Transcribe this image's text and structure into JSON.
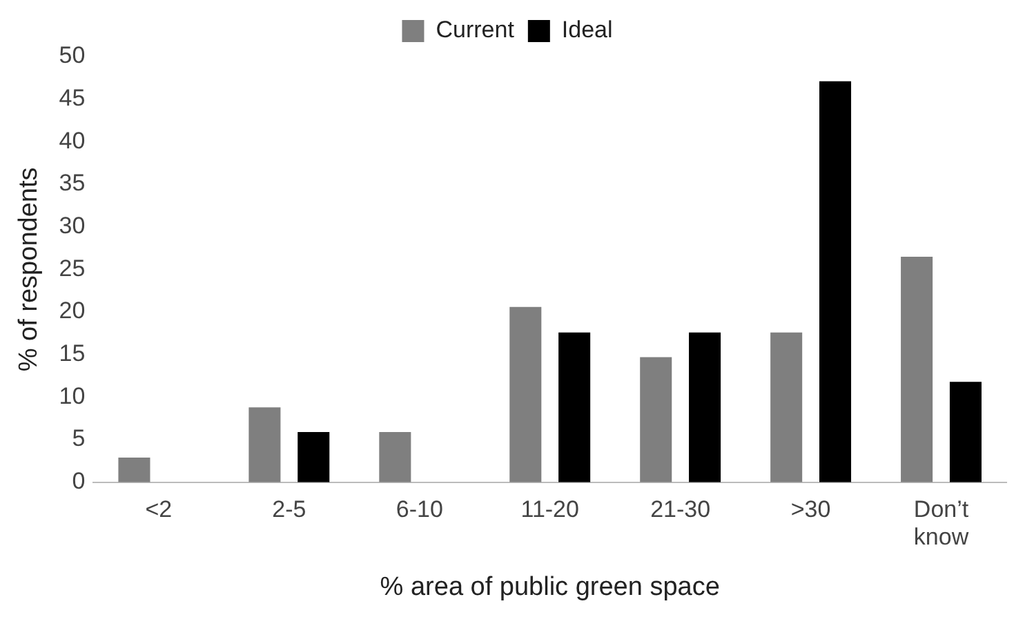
{
  "chart_data": {
    "type": "bar",
    "xlabel": "% area of public green space",
    "ylabel": "% of respondents",
    "categories": [
      "<2",
      "2-5",
      "6-10",
      "11-20",
      "21-30",
      ">30",
      "Don’t know"
    ],
    "series": [
      {
        "name": "Current",
        "color": "#7f7f7f",
        "values": [
          2.9,
          8.8,
          5.9,
          20.6,
          14.7,
          17.6,
          26.5
        ]
      },
      {
        "name": "Ideal",
        "color": "#000000",
        "values": [
          0,
          5.9,
          0,
          17.6,
          17.6,
          47.1,
          11.8
        ]
      }
    ],
    "ylim": [
      0,
      50
    ],
    "yticks": [
      0,
      5,
      10,
      15,
      20,
      25,
      30,
      35,
      40,
      45,
      50
    ],
    "grid": false,
    "legend": "top"
  }
}
